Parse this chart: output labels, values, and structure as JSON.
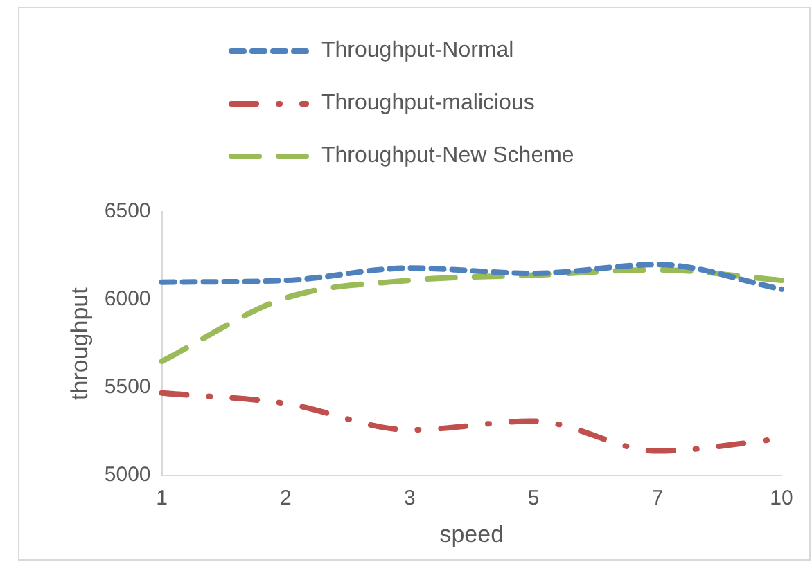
{
  "chart_data": {
    "type": "line",
    "xlabel": "speed",
    "ylabel": "throughput",
    "categories": [
      "1",
      "2",
      "3",
      "5",
      "7",
      "10"
    ],
    "ylim": [
      5000,
      6500
    ],
    "yticks": [
      5000,
      5500,
      6000,
      6500
    ],
    "grid": false,
    "legend": "top",
    "marker": "none",
    "series": [
      {
        "name": "Throughput-Normal",
        "color": "#4f81bd",
        "line_style": "dashed",
        "values": [
          6100,
          6110,
          6180,
          6150,
          6200,
          6060
        ]
      },
      {
        "name": "Throughput-malicious",
        "color": "#c0504d",
        "line_style": "dashdot",
        "values": [
          5470,
          5410,
          5260,
          5310,
          5140,
          5210
        ]
      },
      {
        "name": "Throughput-New Scheme",
        "color": "#9bbb59",
        "line_style": "longdash",
        "values": [
          5650,
          6010,
          6110,
          6140,
          6170,
          6110
        ]
      }
    ]
  }
}
